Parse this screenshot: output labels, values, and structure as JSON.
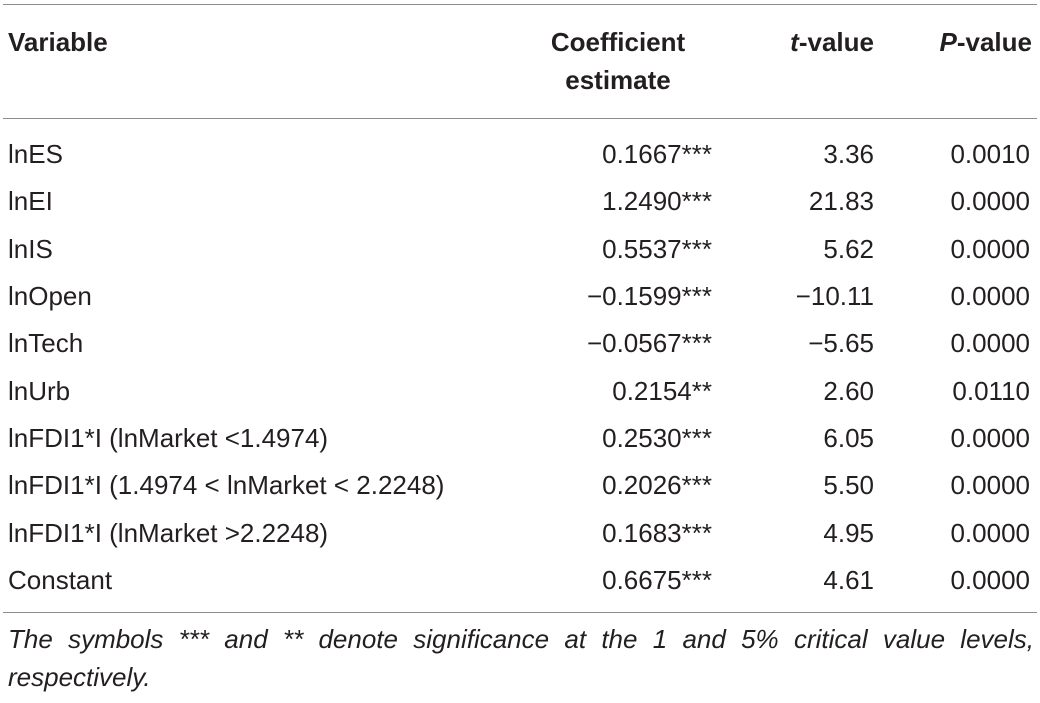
{
  "table": {
    "headers": {
      "variable": "Variable",
      "coefficient_line1": "Coefficient",
      "coefficient_line2": "estimate",
      "t_italic": "t",
      "t_rest": "-value",
      "p_italic": "P",
      "p_rest": "-value"
    },
    "rows": [
      {
        "variable": "lnES",
        "coefficient": "0.1667***",
        "t_value": "3.36",
        "p_value": "0.0010"
      },
      {
        "variable": "lnEI",
        "coefficient": "1.2490***",
        "t_value": "21.83",
        "p_value": "0.0000"
      },
      {
        "variable": "lnIS",
        "coefficient": "0.5537***",
        "t_value": "5.62",
        "p_value": "0.0000"
      },
      {
        "variable": "lnOpen",
        "coefficient": "−0.1599***",
        "t_value": "−10.11",
        "p_value": "0.0000"
      },
      {
        "variable": "lnTech",
        "coefficient": "−0.0567***",
        "t_value": "−5.65",
        "p_value": "0.0000"
      },
      {
        "variable": "lnUrb",
        "coefficient": "0.2154**",
        "t_value": "2.60",
        "p_value": "0.0110"
      },
      {
        "variable": "lnFDI1*I (lnMarket <1.4974)",
        "coefficient": "0.2530***",
        "t_value": "6.05",
        "p_value": "0.0000"
      },
      {
        "variable": "lnFDI1*I (1.4974 < lnMarket < 2.2248)",
        "coefficient": "0.2026***",
        "t_value": "5.50",
        "p_value": "0.0000"
      },
      {
        "variable": "lnFDI1*I (lnMarket >2.2248)",
        "coefficient": "0.1683***",
        "t_value": "4.95",
        "p_value": "0.0000"
      },
      {
        "variable": "Constant",
        "coefficient": "0.6675***",
        "t_value": "4.61",
        "p_value": "0.0000"
      }
    ],
    "footnote": "The symbols *** and ** denote significance at the 1 and 5% critical value levels, respectively."
  },
  "colors": {
    "text": "#231f20",
    "rule": "#8c8c8c",
    "background": "#ffffff"
  }
}
